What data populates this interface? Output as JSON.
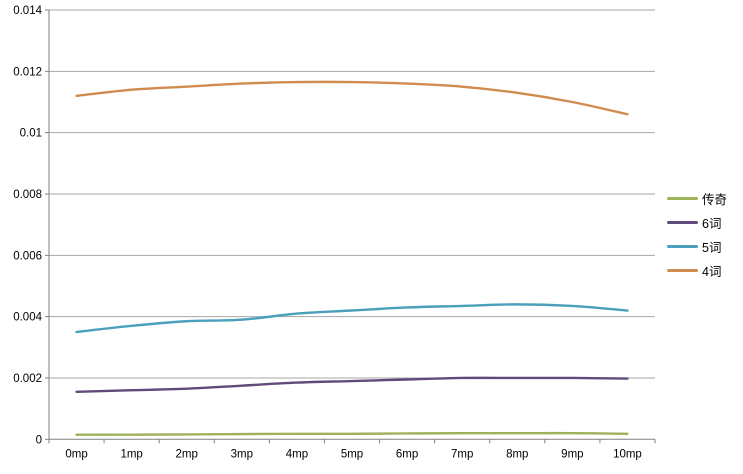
{
  "chart_data": {
    "type": "line",
    "title": "",
    "xlabel": "",
    "ylabel": "",
    "categories": [
      "0mp",
      "1mp",
      "2mp",
      "3mp",
      "4mp",
      "5mp",
      "6mp",
      "7mp",
      "8mp",
      "9mp",
      "10mp"
    ],
    "series": [
      {
        "name": "传奇",
        "color": "#9EB25C",
        "values": [
          0.00015,
          0.00015,
          0.00016,
          0.00017,
          0.00018,
          0.00018,
          0.00019,
          0.0002,
          0.0002,
          0.0002,
          0.00018
        ]
      },
      {
        "name": "6词",
        "color": "#604A7B",
        "values": [
          0.00155,
          0.0016,
          0.00165,
          0.00175,
          0.00185,
          0.0019,
          0.00195,
          0.002,
          0.002,
          0.002,
          0.00198
        ]
      },
      {
        "name": "5词",
        "color": "#4A9FBC",
        "values": [
          0.0035,
          0.0037,
          0.00385,
          0.0039,
          0.0041,
          0.0042,
          0.0043,
          0.00435,
          0.0044,
          0.00435,
          0.0042
        ]
      },
      {
        "name": "4词",
        "color": "#D08C4E",
        "values": [
          0.0112,
          0.0114,
          0.0115,
          0.0116,
          0.01165,
          0.01165,
          0.0116,
          0.0115,
          0.0113,
          0.011,
          0.0106
        ]
      }
    ],
    "ylim": [
      0,
      0.014
    ],
    "yticks": [
      {
        "value": 0,
        "label": "0"
      },
      {
        "value": 0.002,
        "label": "0.002"
      },
      {
        "value": 0.004,
        "label": "0.004"
      },
      {
        "value": 0.006,
        "label": "0.006"
      },
      {
        "value": 0.008,
        "label": "0.008"
      },
      {
        "value": 0.01,
        "label": "0.01"
      },
      {
        "value": 0.012,
        "label": "0.012"
      },
      {
        "value": 0.014,
        "label": "0.014"
      }
    ],
    "grid": true,
    "smooth": true,
    "legend_position": "right",
    "colors": {
      "grid": "#A6A6A6",
      "axis": "#808080",
      "tick_text": "#000000",
      "background": "#FFFFFF"
    }
  }
}
